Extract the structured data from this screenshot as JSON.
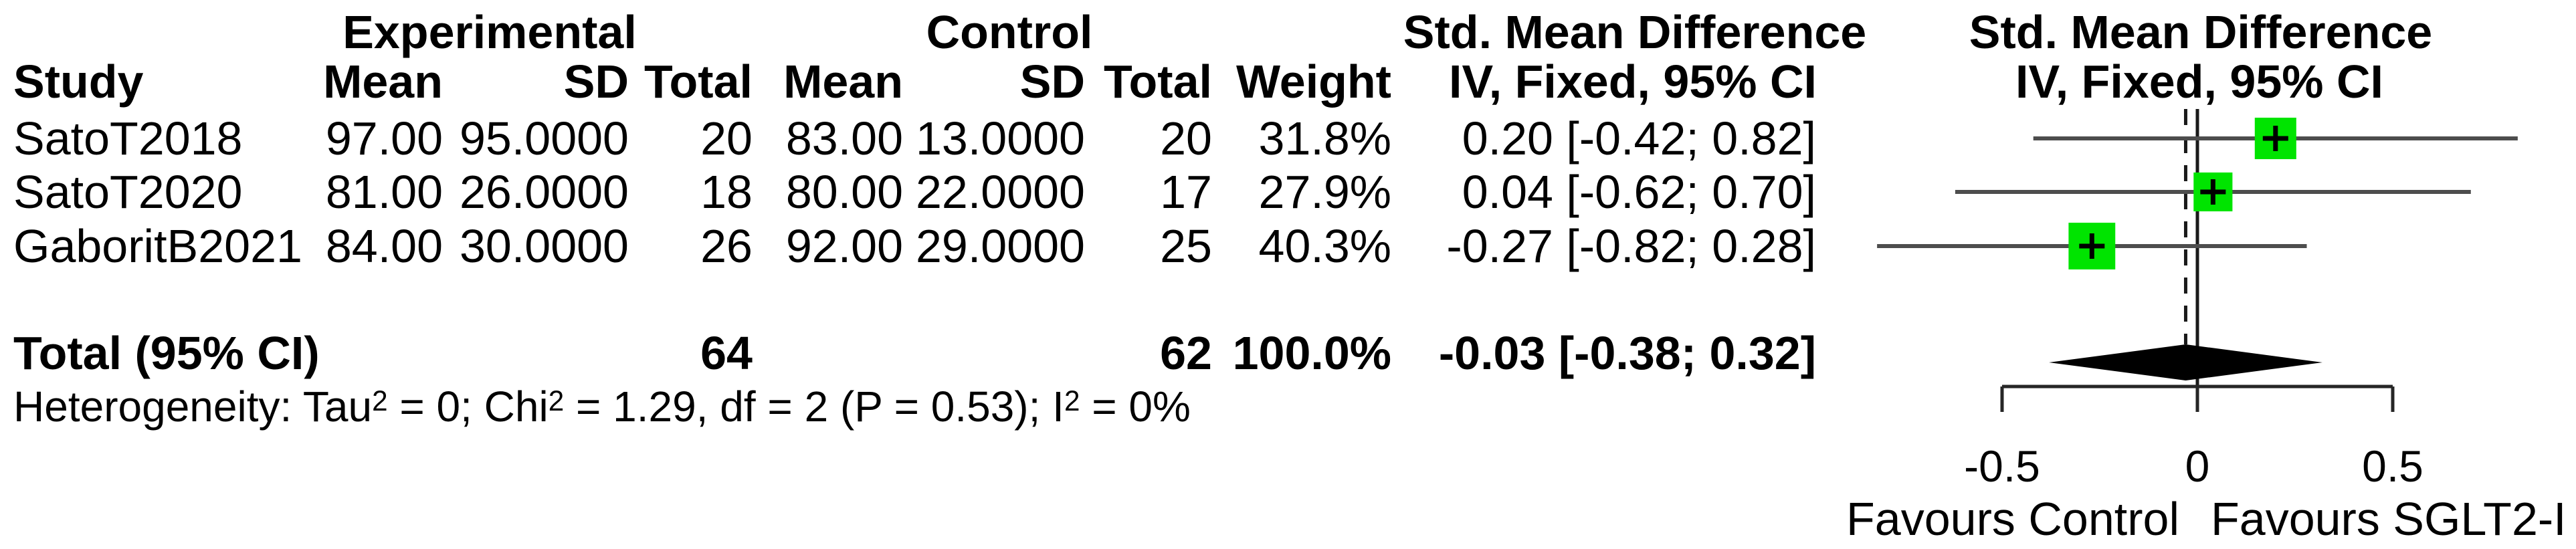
{
  "table": {
    "group_headers": [
      {
        "label": "Experimental"
      },
      {
        "label": "Control"
      },
      {
        "label": "Std. Mean Difference"
      },
      {
        "label": "Std. Mean Difference"
      }
    ],
    "column_headers": {
      "study": "Study",
      "mean_e": "Mean",
      "sd_e": "SD",
      "total_e": "Total",
      "mean_c": "Mean",
      "sd_c": "SD",
      "total_c": "Total",
      "weight": "Weight",
      "smd_ci": "IV, Fixed, 95% CI",
      "smd_ci_plot": "IV, Fixed, 95% CI"
    },
    "rows": [
      {
        "study": "SatoT2018",
        "mean_e": "97.00",
        "sd_e": "95.0000",
        "total_e": "20",
        "mean_c": "83.00",
        "sd_c": "13.0000",
        "total_c": "20",
        "weight": "31.8%",
        "smd_ci": "0.20 [-0.42; 0.82]"
      },
      {
        "study": "SatoT2020",
        "mean_e": "81.00",
        "sd_e": "26.0000",
        "total_e": "18",
        "mean_c": "80.00",
        "sd_c": "22.0000",
        "total_c": "17",
        "weight": "27.9%",
        "smd_ci": "0.04 [-0.62; 0.70]"
      },
      {
        "study": "GaboritB2021",
        "mean_e": "84.00",
        "sd_e": "30.0000",
        "total_e": "26",
        "mean_c": "92.00",
        "sd_c": "29.0000",
        "total_c": "25",
        "weight": "40.3%",
        "smd_ci": "-0.27 [-0.82; 0.28]"
      }
    ],
    "total_row": {
      "label": "Total (95% CI)",
      "total_e": "64",
      "total_c": "62",
      "weight": "100.0%",
      "smd_ci": "-0.03 [-0.38; 0.32]"
    },
    "heterogeneity_segments": [
      {
        "t": "Heterogeneity: Tau"
      },
      {
        "t": "2",
        "sup": true
      },
      {
        "t": " = 0; Chi"
      },
      {
        "t": "2",
        "sup": true
      },
      {
        "t": " = 1.29, df = 2 (P = 0.53); I"
      },
      {
        "t": "2",
        "sup": true
      },
      {
        "t": " = 0%"
      }
    ]
  },
  "chart_data": {
    "type": "forest",
    "effect_measure": "Std. Mean Difference",
    "model": "IV, Fixed, 95% CI",
    "studies": [
      {
        "name": "SatoT2018",
        "smd": 0.2,
        "ci_low": -0.42,
        "ci_high": 0.82,
        "weight_pct": 31.8
      },
      {
        "name": "SatoT2020",
        "smd": 0.04,
        "ci_low": -0.62,
        "ci_high": 0.7,
        "weight_pct": 27.9
      },
      {
        "name": "GaboritB2021",
        "smd": -0.27,
        "ci_low": -0.82,
        "ci_high": 0.28,
        "weight_pct": 40.3
      }
    ],
    "pooled": {
      "label": "Total (95% CI)",
      "smd": -0.03,
      "ci_low": -0.38,
      "ci_high": 0.32,
      "total_e": 64,
      "total_c": 62,
      "weight_pct": 100.0
    },
    "heterogeneity": {
      "tau2": 0,
      "chi2": 1.29,
      "df": 2,
      "p": 0.53,
      "i2_pct": 0
    },
    "axis": {
      "xlim": [
        -0.5,
        0.5
      ],
      "ticks": [
        -0.5,
        0,
        0.5
      ],
      "tick_labels": [
        "-0.5",
        "0",
        "0.5"
      ],
      "label_left": "Favours Control",
      "label_right": "Favours SGLT2-I"
    },
    "zero_line": 0,
    "pooled_line": -0.03,
    "colors": {
      "square": "#00E400",
      "ci_line": "#4D4D4D",
      "diamond": "#000000",
      "axis": "#262626",
      "ref_line": "#1A1A1A"
    }
  }
}
